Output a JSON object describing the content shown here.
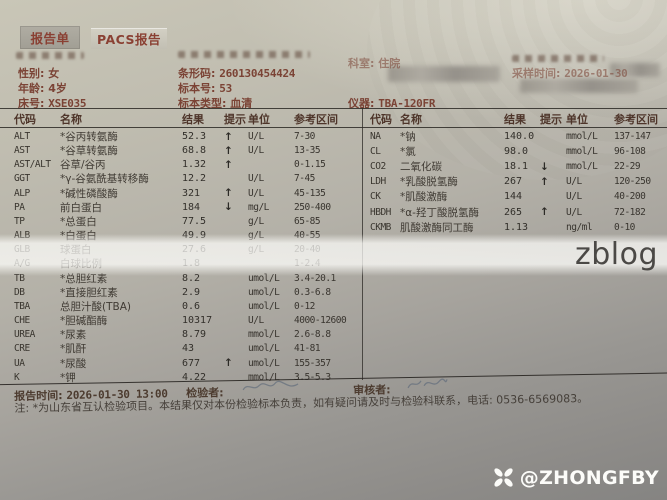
{
  "tabs": [
    {
      "label": "报告单",
      "active": true
    },
    {
      "label": "PACS报告",
      "active": false
    }
  ],
  "patient": {
    "sex_label": "性别:",
    "sex": "女",
    "age_label": "年龄:",
    "age": "4岁",
    "bed_label": "床号:",
    "bed": "XSE035",
    "barcode_label": "条形码:",
    "barcode": "260130454424",
    "sample_no_label": "标本号:",
    "sample_no": "53",
    "sample_type_label": "标本类型:",
    "sample_type": "血清",
    "dept_label": "科室:",
    "dept": "住院",
    "sampling_time_label": "采样时间:",
    "sampling_time": "2026-01-30",
    "instrument_label": "仪器:",
    "instrument": "TBA-120FR"
  },
  "table_headers": [
    "代码",
    "名称",
    "结果",
    "提示",
    "单位",
    "参考区间"
  ],
  "left_rows": [
    {
      "code": "ALT",
      "name": "*谷丙转氨酶",
      "result": "52.3",
      "flag": "↑",
      "unit": "U/L",
      "range": "7-30"
    },
    {
      "code": "AST",
      "name": "*谷草转氨酶",
      "result": "68.8",
      "flag": "↑",
      "unit": "U/L",
      "range": "13-35"
    },
    {
      "code": "AST/ALT",
      "name": "谷草/谷丙",
      "result": "1.32",
      "flag": "↑",
      "unit": "",
      "range": "0-1.15"
    },
    {
      "code": "GGT",
      "name": "*γ-谷氨酰基转移酶",
      "result": "12.2",
      "flag": "",
      "unit": "U/L",
      "range": "7-45"
    },
    {
      "code": "ALP",
      "name": "*碱性磷酸酶",
      "result": "321",
      "flag": "↑",
      "unit": "U/L",
      "range": "45-135"
    },
    {
      "code": "PA",
      "name": "前白蛋白",
      "result": "184",
      "flag": "↓",
      "unit": "mg/L",
      "range": "250-400"
    },
    {
      "code": "TP",
      "name": "*总蛋白",
      "result": "77.5",
      "flag": "",
      "unit": "g/L",
      "range": "65-85"
    },
    {
      "code": "ALB",
      "name": "*白蛋白",
      "result": "49.9",
      "flag": "",
      "unit": "g/L",
      "range": "40-55"
    },
    {
      "code": "GLB",
      "name": "球蛋白",
      "result": "27.6",
      "flag": "",
      "unit": "g/L",
      "range": "20-40"
    },
    {
      "code": "A/G",
      "name": "白球比例",
      "result": "1.8",
      "flag": "",
      "unit": "",
      "range": "1-2.4"
    },
    {
      "code": "TB",
      "name": "*总胆红素",
      "result": "8.2",
      "flag": "",
      "unit": "umol/L",
      "range": "3.4-20.1"
    },
    {
      "code": "DB",
      "name": "*直接胆红素",
      "result": "2.9",
      "flag": "",
      "unit": "umol/L",
      "range": "0.3-6.8"
    },
    {
      "code": "TBA",
      "name": "总胆汁酸(TBA)",
      "result": "0.6",
      "flag": "",
      "unit": "umol/L",
      "range": "0-12"
    },
    {
      "code": "CHE",
      "name": "*胆碱酯酶",
      "result": "10317",
      "flag": "",
      "unit": "U/L",
      "range": "4000-12600"
    },
    {
      "code": "UREA",
      "name": "*尿素",
      "result": "8.79",
      "flag": "",
      "unit": "mmol/L",
      "range": "2.6-8.8"
    },
    {
      "code": "CRE",
      "name": "*肌酐",
      "result": "43",
      "flag": "",
      "unit": "umol/L",
      "range": "41-81"
    },
    {
      "code": "UA",
      "name": "*尿酸",
      "result": "677",
      "flag": "↑",
      "unit": "umol/L",
      "range": "155-357"
    },
    {
      "code": "K",
      "name": "*钾",
      "result": "4.22",
      "flag": "",
      "unit": "mmol/L",
      "range": "3.5-5.3"
    }
  ],
  "right_rows": [
    {
      "code": "NA",
      "name": "*钠",
      "result": "140.0",
      "flag": "",
      "unit": "mmol/L",
      "range": "137-147"
    },
    {
      "code": "CL",
      "name": "*氯",
      "result": "98.0",
      "flag": "",
      "unit": "mmol/L",
      "range": "96-108"
    },
    {
      "code": "CO2",
      "name": "二氧化碳",
      "result": "18.1",
      "flag": "↓",
      "unit": "mmol/L",
      "range": "22-29"
    },
    {
      "code": "LDH",
      "name": "*乳酸脱氢酶",
      "result": "267",
      "flag": "↑",
      "unit": "U/L",
      "range": "120-250"
    },
    {
      "code": "CK",
      "name": "*肌酸激酶",
      "result": "144",
      "flag": "",
      "unit": "U/L",
      "range": "40-200"
    },
    {
      "code": "HBDH",
      "name": "*α-羟丁酸脱氢酶",
      "result": "265",
      "flag": "↑",
      "unit": "U/L",
      "range": "72-182"
    },
    {
      "code": "CKMB",
      "name": "肌酸激酶同工酶",
      "result": "1.13",
      "flag": "",
      "unit": "ng/ml",
      "range": "0-10"
    }
  ],
  "footer": {
    "report_time_label": "报告时间:",
    "report_time": "2026-01-30 13:00",
    "examiner_label": "检验者:",
    "reviewer_label": "审核者:",
    "note": "注: *为山东省互认检验项目。本结果仅对本份检验标本负责，如有疑问请及时与检验科联系，电话: 0536-6569083。"
  },
  "watermark": "zblog",
  "credit": "@ZHONGFBY"
}
